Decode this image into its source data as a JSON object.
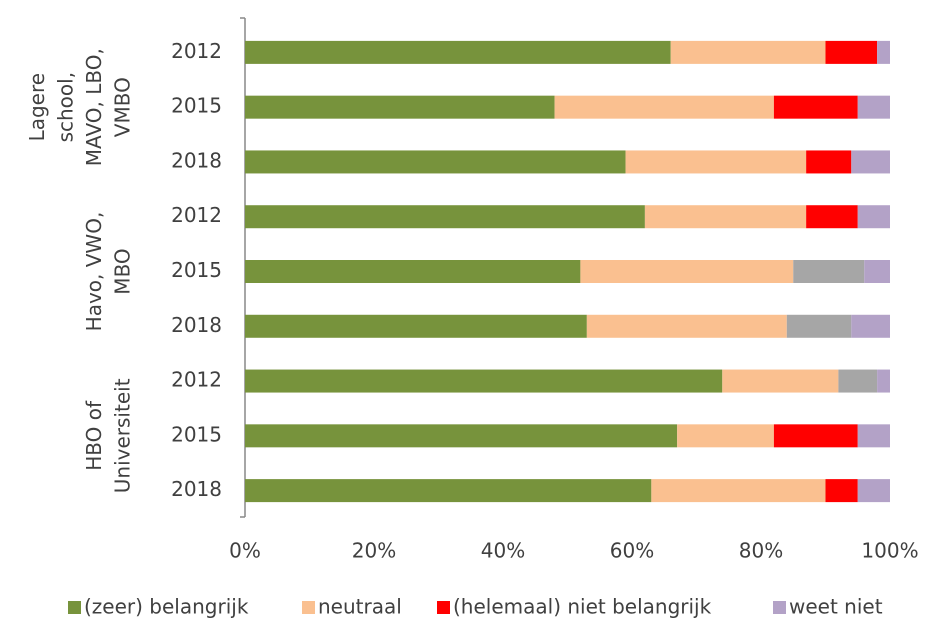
{
  "chart_data": {
    "type": "stacked-bar-horizontal",
    "groups": [
      {
        "label": [
          "Lagere",
          "school,",
          "MAVO, LBO,",
          "VMBO"
        ],
        "categories": [
          "2012",
          "2015",
          "2018"
        ]
      },
      {
        "label": [
          "Havo, VWO,",
          "MBO"
        ],
        "categories": [
          "2012",
          "2015",
          "2018"
        ]
      },
      {
        "label": [
          "HBO of",
          "Universiteit"
        ],
        "categories": [
          "2012",
          "2015",
          "2018"
        ]
      }
    ],
    "series": [
      {
        "name": "(zeer) belangrijk",
        "color": "#77933c",
        "values": [
          66,
          48,
          59,
          62,
          52,
          53,
          74,
          67,
          63
        ]
      },
      {
        "name": "neutraal",
        "color": "#fac090",
        "values": [
          24,
          34,
          28,
          25,
          33,
          31,
          18,
          15,
          27
        ]
      },
      {
        "name": "(helemaal) niet belangrijk",
        "color": "#ff0000",
        "values": [
          8,
          13,
          7,
          8,
          11,
          10,
          6,
          13,
          5
        ],
        "colors": [
          "#ff0000",
          "#ff0000",
          "#ff0000",
          "#ff0000",
          "#a6a6a6",
          "#a6a6a6",
          "#a6a6a6",
          "#ff0000",
          "#ff0000"
        ]
      },
      {
        "name": "weet niet",
        "color": "#b3a2c7",
        "values": [
          2,
          5,
          6,
          5,
          4,
          6,
          2,
          5,
          5
        ]
      }
    ],
    "xlim": [
      0,
      100
    ],
    "xticks": [
      {
        "value": 0,
        "label": "0%"
      },
      {
        "value": 20,
        "label": "20%"
      },
      {
        "value": 40,
        "label": "40%"
      },
      {
        "value": 60,
        "label": "60%"
      },
      {
        "value": 80,
        "label": "80%"
      },
      {
        "value": 100,
        "label": "100%"
      }
    ],
    "legend": "bottom"
  }
}
